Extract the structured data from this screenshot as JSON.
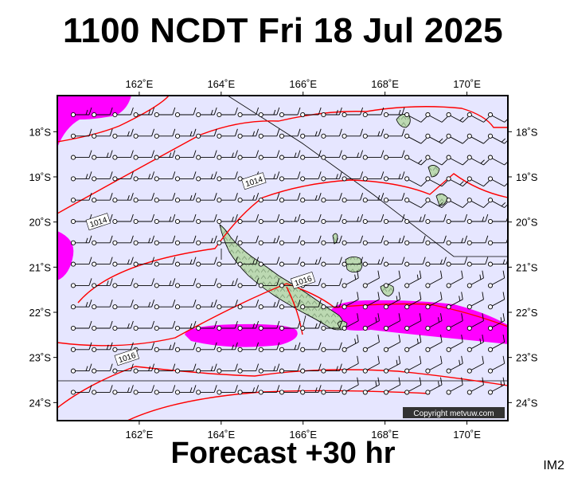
{
  "title": "1100 NCDT Fri 18 Jul 2025",
  "footer": "Forecast +30 hr",
  "product_code": "IM2",
  "copyright": "Copyright metvuw.com",
  "map": {
    "lon_range": [
      160.0,
      171.0
    ],
    "lat_range": [
      -24.4,
      -17.2
    ],
    "lon_ticks": [
      "162˚E",
      "164˚E",
      "166˚E",
      "168˚E",
      "170˚E"
    ],
    "lon_tick_values": [
      162,
      164,
      166,
      168,
      170
    ],
    "lat_ticks": [
      "18˚S",
      "19˚S",
      "20˚S",
      "21˚S",
      "22˚S",
      "23˚S",
      "24˚S"
    ],
    "lat_tick_values": [
      -18,
      -19,
      -20,
      -21,
      -22,
      -23,
      -24
    ],
    "isobar_labels": [
      {
        "text": "1014",
        "lon": 164.8,
        "lat": -19.1
      },
      {
        "text": "1014",
        "lon": 161.0,
        "lat": -20.0
      },
      {
        "text": "1016",
        "lon": 166.0,
        "lat": -21.3
      },
      {
        "text": "1016",
        "lon": 161.7,
        "lat": -23.0
      }
    ],
    "colors": {
      "ocean": "#e6e6ff",
      "land": "#bcd9b2",
      "rain": "#ff00ff",
      "isobar": "#ff0000",
      "barb": "#000000",
      "boundary": "#000000"
    }
  }
}
